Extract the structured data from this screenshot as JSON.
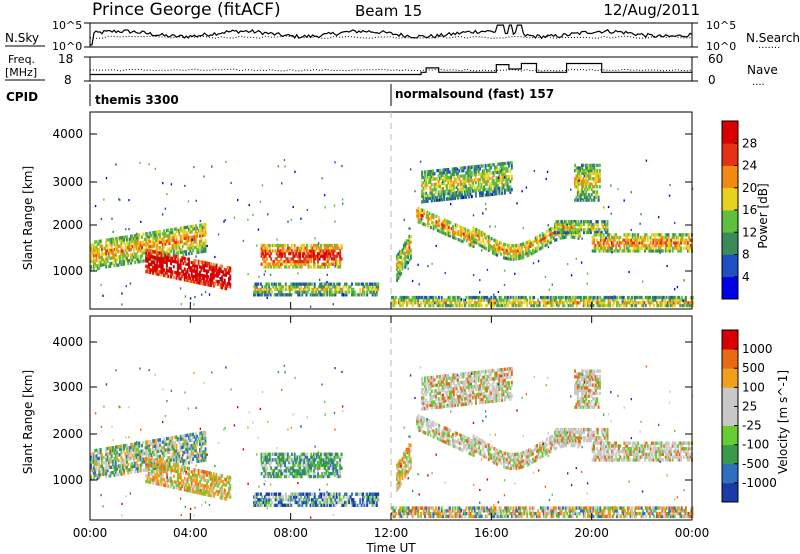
{
  "header": {
    "station": "Prince George (fitACF)",
    "beam": "Beam 15",
    "date": "12/Aug/2011"
  },
  "strips": {
    "nsky_label": "N.Sky",
    "nsky_ticks": [
      "10^5",
      "10^0"
    ],
    "nsearch_label": "N.Search",
    "nsearch_ticks": [
      "10^5",
      "10^0"
    ],
    "freq_label": "Freq.",
    "freq_unit": "[MHz]",
    "freq_ticks": [
      "18",
      "8"
    ],
    "nave_label": "Nave",
    "nave_ticks": [
      "60",
      "0"
    ],
    "cpid_label": "CPID",
    "cpid_segments": [
      "themis 3300",
      "normalsound (fast) 157"
    ]
  },
  "chart_data": [
    {
      "type": "heatmap",
      "name": "power-panel",
      "ylabel": "Slant Range [km]",
      "yticks": [
        "4000",
        "3000",
        "2000",
        "1000"
      ],
      "ylim": [
        180,
        4600
      ],
      "xlim": [
        0,
        24
      ],
      "colorbar_label": "Power [dB]",
      "colorbar_ticks": [
        "28",
        "24",
        "20",
        "16",
        "12",
        "8",
        "4"
      ],
      "colorbar_colors": [
        "#0000e6",
        "#1f4fc0",
        "#3a8a5a",
        "#5fbf3f",
        "#e6d21a",
        "#f08a14",
        "#e63214",
        "#d80000"
      ]
    },
    {
      "type": "heatmap",
      "name": "velocity-panel",
      "ylabel": "Slant Range [km]",
      "yticks": [
        "4000",
        "3000",
        "2000",
        "1000"
      ],
      "ylim": [
        180,
        4600
      ],
      "xlim": [
        0,
        24
      ],
      "colorbar_label": "Velocity [m s^-1]",
      "colorbar_ticks": [
        "1000",
        "500",
        "100",
        "25",
        "-25",
        "-100",
        "-500",
        "-1000"
      ],
      "colorbar_colors": [
        "#1a3aa8",
        "#2f6fbf",
        "#3a9a4a",
        "#66cc33",
        "#c8c8c8",
        "#c8c8c8",
        "#f0a01a",
        "#e86a14",
        "#d80000"
      ]
    }
  ],
  "xaxis": {
    "ticks": [
      "00:00",
      "04:00",
      "08:00",
      "12:00",
      "16:00",
      "20:00",
      "00:00"
    ],
    "label": "Time UT"
  }
}
